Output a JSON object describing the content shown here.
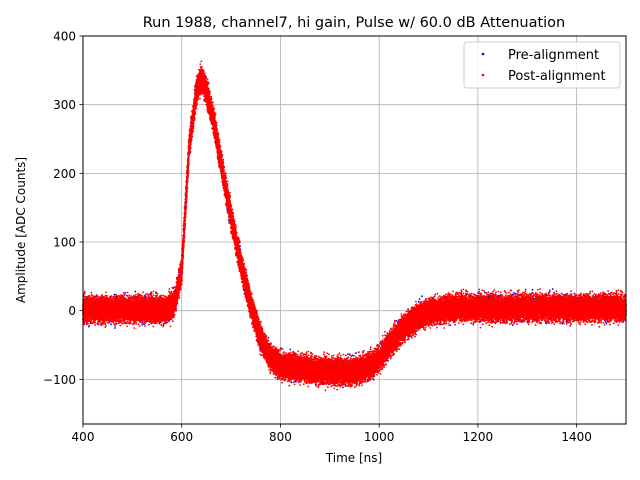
{
  "chart_data": {
    "type": "scatter",
    "title": "Run 1988, channel7, hi gain, Pulse w/ 60.0 dB Attenuation",
    "xlabel": "Time [ns]",
    "ylabel": "Amplitude [ADC Counts]",
    "xlim": [
      400,
      1500
    ],
    "ylim": [
      -165,
      400
    ],
    "xticks": [
      400,
      600,
      800,
      1000,
      1200,
      1400
    ],
    "yticks": [
      -100,
      0,
      100,
      200,
      300,
      400
    ],
    "xtick_labels": [
      "400",
      "600",
      "800",
      "1000",
      "1200",
      "1400"
    ],
    "ytick_labels": [
      "−100",
      "0",
      "100",
      "200",
      "300",
      "400"
    ],
    "grid": true,
    "legend_position": "top-right",
    "series": [
      {
        "name": "Pre-alignment",
        "color": "#0000ff",
        "marker": "point",
        "envelope": {
          "x": [
            400,
            570,
            585,
            600,
            615,
            630,
            640,
            650,
            665,
            680,
            700,
            720,
            740,
            760,
            780,
            800,
            850,
            900,
            950,
            980,
            1000,
            1020,
            1050,
            1080,
            1100,
            1130,
            1170,
            1200,
            1300,
            1400,
            1500
          ],
          "y": [
            2,
            2,
            10,
            60,
            240,
            320,
            338,
            320,
            275,
            215,
            135,
            68,
            8,
            -40,
            -68,
            -80,
            -85,
            -88,
            -88,
            -82,
            -70,
            -50,
            -25,
            -8,
            -2,
            2,
            5,
            4,
            4,
            4,
            4
          ],
          "spread": 20
        }
      },
      {
        "name": "Post-alignment",
        "color": "#ff0000",
        "marker": "point",
        "envelope": {
          "x": [
            400,
            570,
            585,
            600,
            615,
            630,
            640,
            650,
            665,
            680,
            700,
            720,
            740,
            760,
            780,
            800,
            850,
            900,
            950,
            980,
            1000,
            1020,
            1050,
            1080,
            1100,
            1130,
            1170,
            1200,
            1300,
            1400,
            1500
          ],
          "y": [
            2,
            2,
            10,
            60,
            240,
            320,
            338,
            320,
            275,
            215,
            135,
            68,
            8,
            -40,
            -68,
            -80,
            -85,
            -88,
            -88,
            -82,
            -70,
            -50,
            -25,
            -8,
            -2,
            2,
            5,
            4,
            4,
            4,
            4
          ],
          "spread": 20
        }
      }
    ]
  }
}
